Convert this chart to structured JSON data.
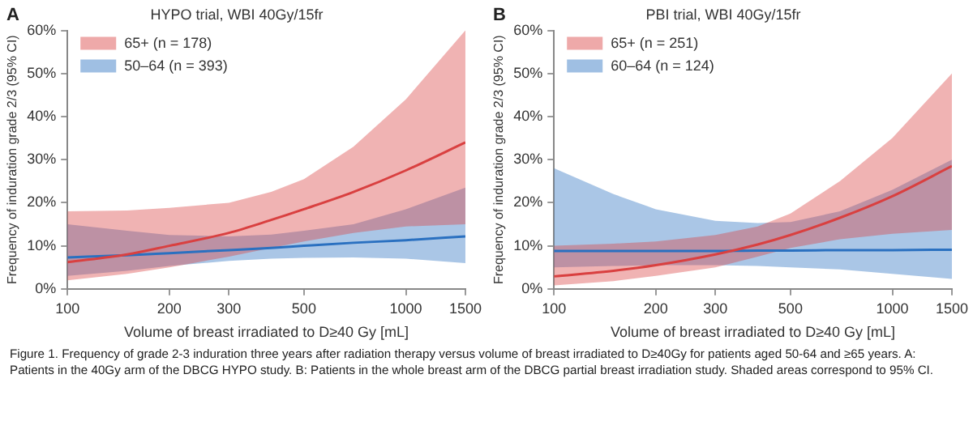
{
  "chart_data": [
    {
      "type": "line",
      "title": "HYPO trial, WBI 40Gy/15fr",
      "xlabel": "Volume of breast irradiated to D≥40 Gy [mL]",
      "ylabel": "Frequency of induration grade 2/3 (95% CI)",
      "log": "x",
      "legend": "top left",
      "grid": false,
      "annotations": [
        "A"
      ],
      "x": [
        100,
        150,
        200,
        300,
        400,
        500,
        700,
        1000,
        1500
      ],
      "xlim": [
        100,
        1500
      ],
      "xticks": [
        100,
        200,
        300,
        500,
        1000,
        1500
      ],
      "ylim": [
        0,
        60
      ],
      "yticks": [
        {
          "value": 0,
          "label": "0%"
        },
        {
          "value": 10,
          "label": "10%"
        },
        {
          "value": 20,
          "label": "20%"
        },
        {
          "value": 30,
          "label": "30%"
        },
        {
          "value": 40,
          "label": "40%"
        },
        {
          "value": 50,
          "label": "50%"
        },
        {
          "value": 60,
          "label": "60%"
        }
      ],
      "series": [
        {
          "name": "65+ (n = 178)",
          "color": "#d94040",
          "values": [
            6.2,
            8,
            10,
            13,
            16,
            18.5,
            22.5,
            27.5,
            34
          ],
          "lower": [
            2,
            3.5,
            5,
            7.5,
            9.5,
            11,
            13,
            14.5,
            15
          ],
          "upper": [
            18,
            18.2,
            18.8,
            20,
            22.5,
            25.5,
            33,
            44,
            60
          ]
        },
        {
          "name": "50–64 (n = 393)",
          "color": "#2a70c0",
          "values": [
            7.3,
            7.8,
            8.3,
            9,
            9.5,
            10,
            10.7,
            11.3,
            12.2
          ],
          "lower": [
            3,
            4.2,
            5.3,
            6.5,
            7,
            7.2,
            7.3,
            7,
            6
          ],
          "upper": [
            15,
            13.5,
            12.5,
            12.2,
            12.6,
            13.5,
            15,
            18.5,
            23.5
          ]
        }
      ]
    },
    {
      "type": "line",
      "title": "PBI trial, WBI 40Gy/15fr",
      "xlabel": "Volume of breast irradiated to D≥40 Gy [mL]",
      "ylabel": "Frequency of induration grade 2/3 (95% CI)",
      "log": "x",
      "legend": "top left",
      "grid": false,
      "annotations": [
        "B",
        "Figure 1. Frequency of grade 2-3 induration three years after radiation therapy versus volume of breast irradiated to D≥40Gy for patients aged 50-64 and ≥65 years. A: Patients in the 40Gy arm of the DBCG HYPO study. B: Patients in the whole breast arm of the DBCG partial breast irradiation study. Shaded areas correspond to 95% CI."
      ],
      "x": [
        100,
        150,
        200,
        300,
        400,
        500,
        700,
        1000,
        1500
      ],
      "xlim": [
        100,
        1500
      ],
      "xticks": [
        100,
        200,
        300,
        500,
        1000,
        1500
      ],
      "ylim": [
        0,
        60
      ],
      "yticks": [
        {
          "value": 0,
          "label": "0%"
        },
        {
          "value": 10,
          "label": "10%"
        },
        {
          "value": 20,
          "label": "20%"
        },
        {
          "value": 30,
          "label": "30%"
        },
        {
          "value": 40,
          "label": "40%"
        },
        {
          "value": 50,
          "label": "50%"
        },
        {
          "value": 60,
          "label": "60%"
        }
      ],
      "series": [
        {
          "name": "65+ (n = 251)",
          "color": "#d94040",
          "values": [
            2.9,
            4.2,
            5.5,
            8,
            10.3,
            12.5,
            16.5,
            21.5,
            28.5
          ],
          "lower": [
            0.8,
            1.8,
            3,
            5,
            7.5,
            9.5,
            11.5,
            12.8,
            13.7
          ],
          "upper": [
            10,
            10.5,
            11,
            12.5,
            14.5,
            17.5,
            25,
            35,
            50
          ]
        },
        {
          "name": "60–64 (n = 124)",
          "color": "#2a70c0",
          "values": [
            8.8,
            8.8,
            8.8,
            8.8,
            8.9,
            8.9,
            9,
            9,
            9.1
          ],
          "lower": [
            5,
            5.3,
            5.5,
            5.5,
            5.3,
            5,
            4.5,
            3.5,
            2.3
          ],
          "upper": [
            28,
            22,
            18.5,
            15.8,
            15.3,
            15.5,
            18,
            23,
            30
          ]
        }
      ]
    }
  ]
}
